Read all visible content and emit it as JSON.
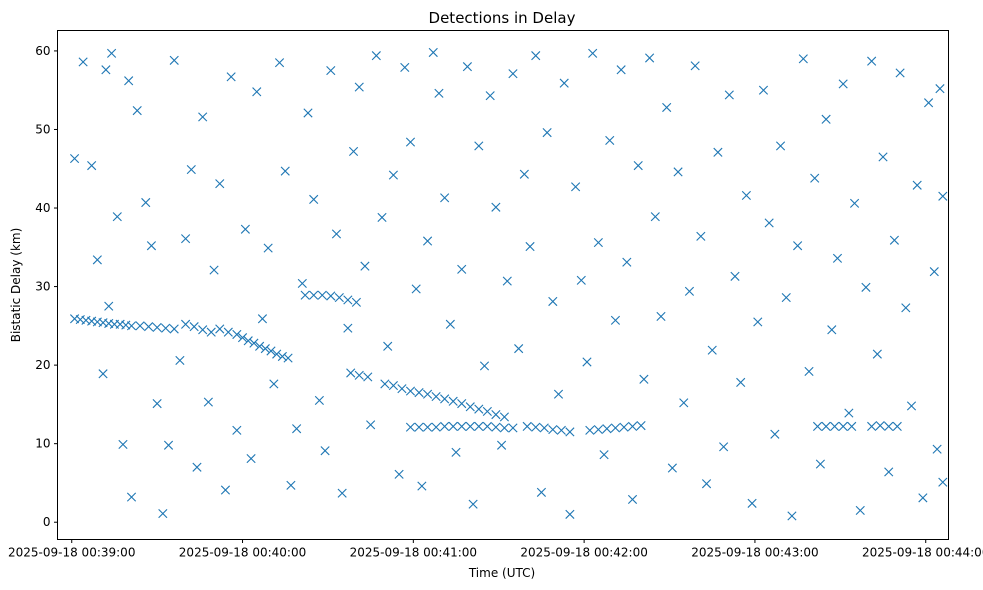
{
  "chart_data": {
    "type": "scatter",
    "title": "Detections in Delay",
    "xlabel": "Time (UTC)",
    "ylabel": "Bistatic Delay (km)",
    "x_unit": "time",
    "xlim": [
      "2025-09-18 00:38:55",
      "2025-09-18 00:44:08"
    ],
    "ylim": [
      -2.2,
      62.6
    ],
    "x_ticks": [
      "2025-09-18 00:39:00",
      "2025-09-18 00:40:00",
      "2025-09-18 00:41:00",
      "2025-09-18 00:42:00",
      "2025-09-18 00:43:00",
      "2025-09-18 00:44:00"
    ],
    "y_ticks": [
      "0",
      "10",
      "20",
      "30",
      "40",
      "50",
      "60"
    ],
    "marker": "x",
    "color": "#1f77b4",
    "grid": false,
    "legend": "none",
    "series": [
      {
        "values": [
          [
            "2025-09-18 00:39:01",
            25.9
          ],
          [
            "2025-09-18 00:39:03",
            25.8
          ],
          [
            "2025-09-18 00:39:05",
            25.7
          ],
          [
            "2025-09-18 00:39:07",
            25.6
          ],
          [
            "2025-09-18 00:39:09",
            25.5
          ],
          [
            "2025-09-18 00:39:11",
            25.4
          ],
          [
            "2025-09-18 00:39:13",
            25.3
          ],
          [
            "2025-09-18 00:39:15",
            25.2
          ],
          [
            "2025-09-18 00:39:17",
            25.2
          ],
          [
            "2025-09-18 00:39:19",
            25.1
          ],
          [
            "2025-09-18 00:39:21",
            25.0
          ],
          [
            "2025-09-18 00:39:24",
            25.0
          ],
          [
            "2025-09-18 00:39:27",
            24.9
          ],
          [
            "2025-09-18 00:39:30",
            24.8
          ],
          [
            "2025-09-18 00:39:33",
            24.7
          ],
          [
            "2025-09-18 00:39:36",
            24.6
          ],
          [
            "2025-09-18 00:39:40",
            25.2
          ],
          [
            "2025-09-18 00:39:43",
            24.9
          ],
          [
            "2025-09-18 00:39:46",
            24.5
          ],
          [
            "2025-09-18 00:39:49",
            24.2
          ],
          [
            "2025-09-18 00:39:52",
            24.6
          ],
          [
            "2025-09-18 00:39:55",
            24.2
          ],
          [
            "2025-09-18 00:39:58",
            23.9
          ],
          [
            "2025-09-18 00:40:00",
            23.5
          ],
          [
            "2025-09-18 00:40:02",
            23.1
          ],
          [
            "2025-09-18 00:40:04",
            22.8
          ],
          [
            "2025-09-18 00:40:06",
            22.4
          ],
          [
            "2025-09-18 00:40:08",
            22.1
          ],
          [
            "2025-09-18 00:40:10",
            21.8
          ],
          [
            "2025-09-18 00:40:12",
            21.4
          ],
          [
            "2025-09-18 00:40:14",
            21.1
          ],
          [
            "2025-09-18 00:40:16",
            20.9
          ],
          [
            "2025-09-18 00:40:22",
            28.9
          ],
          [
            "2025-09-18 00:40:25",
            28.9
          ],
          [
            "2025-09-18 00:40:28",
            28.9
          ],
          [
            "2025-09-18 00:40:31",
            28.8
          ],
          [
            "2025-09-18 00:40:34",
            28.6
          ],
          [
            "2025-09-18 00:40:37",
            28.3
          ],
          [
            "2025-09-18 00:40:40",
            28.0
          ],
          [
            "2025-09-18 00:40:38",
            19.0
          ],
          [
            "2025-09-18 00:40:41",
            18.7
          ],
          [
            "2025-09-18 00:40:44",
            18.5
          ],
          [
            "2025-09-18 00:40:50",
            17.6
          ],
          [
            "2025-09-18 00:40:53",
            17.4
          ],
          [
            "2025-09-18 00:40:56",
            17.0
          ],
          [
            "2025-09-18 00:40:59",
            16.7
          ],
          [
            "2025-09-18 00:41:02",
            16.5
          ],
          [
            "2025-09-18 00:41:05",
            16.3
          ],
          [
            "2025-09-18 00:41:08",
            16.0
          ],
          [
            "2025-09-18 00:41:11",
            15.7
          ],
          [
            "2025-09-18 00:41:14",
            15.4
          ],
          [
            "2025-09-18 00:41:17",
            15.1
          ],
          [
            "2025-09-18 00:41:20",
            14.7
          ],
          [
            "2025-09-18 00:41:23",
            14.4
          ],
          [
            "2025-09-18 00:41:26",
            14.1
          ],
          [
            "2025-09-18 00:41:29",
            13.7
          ],
          [
            "2025-09-18 00:41:32",
            13.4
          ],
          [
            "2025-09-18 00:40:59",
            12.1
          ],
          [
            "2025-09-18 00:41:02",
            12.1
          ],
          [
            "2025-09-18 00:41:05",
            12.1
          ],
          [
            "2025-09-18 00:41:08",
            12.1
          ],
          [
            "2025-09-18 00:41:11",
            12.2
          ],
          [
            "2025-09-18 00:41:14",
            12.2
          ],
          [
            "2025-09-18 00:41:17",
            12.2
          ],
          [
            "2025-09-18 00:41:20",
            12.2
          ],
          [
            "2025-09-18 00:41:23",
            12.2
          ],
          [
            "2025-09-18 00:41:26",
            12.2
          ],
          [
            "2025-09-18 00:41:29",
            12.1
          ],
          [
            "2025-09-18 00:41:32",
            12.0
          ],
          [
            "2025-09-18 00:41:35",
            12.0
          ],
          [
            "2025-09-18 00:41:40",
            12.2
          ],
          [
            "2025-09-18 00:41:43",
            12.1
          ],
          [
            "2025-09-18 00:41:46",
            12.0
          ],
          [
            "2025-09-18 00:41:49",
            11.8
          ],
          [
            "2025-09-18 00:41:52",
            11.7
          ],
          [
            "2025-09-18 00:41:55",
            11.5
          ],
          [
            "2025-09-18 00:42:02",
            11.7
          ],
          [
            "2025-09-18 00:42:05",
            11.8
          ],
          [
            "2025-09-18 00:42:08",
            11.9
          ],
          [
            "2025-09-18 00:42:11",
            12.0
          ],
          [
            "2025-09-18 00:42:14",
            12.1
          ],
          [
            "2025-09-18 00:42:17",
            12.2
          ],
          [
            "2025-09-18 00:42:20",
            12.3
          ],
          [
            "2025-09-18 00:43:22",
            12.2
          ],
          [
            "2025-09-18 00:43:25",
            12.2
          ],
          [
            "2025-09-18 00:43:28",
            12.2
          ],
          [
            "2025-09-18 00:43:31",
            12.2
          ],
          [
            "2025-09-18 00:43:34",
            12.2
          ],
          [
            "2025-09-18 00:43:41",
            12.2
          ],
          [
            "2025-09-18 00:43:44",
            12.3
          ],
          [
            "2025-09-18 00:43:47",
            12.2
          ],
          [
            "2025-09-18 00:43:50",
            12.2
          ],
          [
            "2025-09-18 00:39:01",
            46.3
          ],
          [
            "2025-09-18 00:39:04",
            58.6
          ],
          [
            "2025-09-18 00:39:07",
            45.4
          ],
          [
            "2025-09-18 00:39:09",
            33.4
          ],
          [
            "2025-09-18 00:39:11",
            18.9
          ],
          [
            "2025-09-18 00:39:12",
            57.6
          ],
          [
            "2025-09-18 00:39:13",
            27.5
          ],
          [
            "2025-09-18 00:39:14",
            59.7
          ],
          [
            "2025-09-18 00:39:16",
            38.9
          ],
          [
            "2025-09-18 00:39:18",
            9.9
          ],
          [
            "2025-09-18 00:39:20",
            56.2
          ],
          [
            "2025-09-18 00:39:21",
            3.2
          ],
          [
            "2025-09-18 00:39:23",
            52.4
          ],
          [
            "2025-09-18 00:39:26",
            40.7
          ],
          [
            "2025-09-18 00:39:28",
            35.2
          ],
          [
            "2025-09-18 00:39:30",
            15.1
          ],
          [
            "2025-09-18 00:39:32",
            1.1
          ],
          [
            "2025-09-18 00:39:34",
            9.8
          ],
          [
            "2025-09-18 00:39:36",
            58.8
          ],
          [
            "2025-09-18 00:39:38",
            20.6
          ],
          [
            "2025-09-18 00:39:40",
            36.1
          ],
          [
            "2025-09-18 00:39:42",
            44.9
          ],
          [
            "2025-09-18 00:39:44",
            7.0
          ],
          [
            "2025-09-18 00:39:46",
            51.6
          ],
          [
            "2025-09-18 00:39:48",
            15.3
          ],
          [
            "2025-09-18 00:39:50",
            32.1
          ],
          [
            "2025-09-18 00:39:52",
            43.1
          ],
          [
            "2025-09-18 00:39:54",
            4.1
          ],
          [
            "2025-09-18 00:39:56",
            56.7
          ],
          [
            "2025-09-18 00:39:58",
            11.7
          ],
          [
            "2025-09-18 00:40:01",
            37.3
          ],
          [
            "2025-09-18 00:40:03",
            8.1
          ],
          [
            "2025-09-18 00:40:05",
            54.8
          ],
          [
            "2025-09-18 00:40:07",
            25.9
          ],
          [
            "2025-09-18 00:40:09",
            34.9
          ],
          [
            "2025-09-18 00:40:11",
            17.6
          ],
          [
            "2025-09-18 00:40:13",
            58.5
          ],
          [
            "2025-09-18 00:40:15",
            44.7
          ],
          [
            "2025-09-18 00:40:17",
            4.7
          ],
          [
            "2025-09-18 00:40:19",
            11.9
          ],
          [
            "2025-09-18 00:40:21",
            30.4
          ],
          [
            "2025-09-18 00:40:23",
            52.1
          ],
          [
            "2025-09-18 00:40:25",
            41.1
          ],
          [
            "2025-09-18 00:40:27",
            15.5
          ],
          [
            "2025-09-18 00:40:29",
            9.1
          ],
          [
            "2025-09-18 00:40:31",
            57.5
          ],
          [
            "2025-09-18 00:40:33",
            36.7
          ],
          [
            "2025-09-18 00:40:35",
            3.7
          ],
          [
            "2025-09-18 00:40:37",
            24.7
          ],
          [
            "2025-09-18 00:40:39",
            47.2
          ],
          [
            "2025-09-18 00:40:41",
            55.4
          ],
          [
            "2025-09-18 00:40:43",
            32.6
          ],
          [
            "2025-09-18 00:40:45",
            12.4
          ],
          [
            "2025-09-18 00:40:47",
            59.4
          ],
          [
            "2025-09-18 00:40:49",
            38.8
          ],
          [
            "2025-09-18 00:40:51",
            22.4
          ],
          [
            "2025-09-18 00:40:53",
            44.2
          ],
          [
            "2025-09-18 00:40:55",
            6.1
          ],
          [
            "2025-09-18 00:40:57",
            57.9
          ],
          [
            "2025-09-18 00:40:59",
            48.4
          ],
          [
            "2025-09-18 00:41:01",
            29.7
          ],
          [
            "2025-09-18 00:41:03",
            4.6
          ],
          [
            "2025-09-18 00:41:05",
            35.8
          ],
          [
            "2025-09-18 00:41:07",
            59.8
          ],
          [
            "2025-09-18 00:41:09",
            54.6
          ],
          [
            "2025-09-18 00:41:11",
            41.3
          ],
          [
            "2025-09-18 00:41:13",
            25.2
          ],
          [
            "2025-09-18 00:41:15",
            8.9
          ],
          [
            "2025-09-18 00:41:17",
            32.2
          ],
          [
            "2025-09-18 00:41:19",
            58.0
          ],
          [
            "2025-09-18 00:41:21",
            2.3
          ],
          [
            "2025-09-18 00:41:23",
            47.9
          ],
          [
            "2025-09-18 00:41:25",
            19.9
          ],
          [
            "2025-09-18 00:41:27",
            54.3
          ],
          [
            "2025-09-18 00:41:29",
            40.1
          ],
          [
            "2025-09-18 00:41:31",
            9.8
          ],
          [
            "2025-09-18 00:41:33",
            30.7
          ],
          [
            "2025-09-18 00:41:35",
            57.1
          ],
          [
            "2025-09-18 00:41:37",
            22.1
          ],
          [
            "2025-09-18 00:41:39",
            44.3
          ],
          [
            "2025-09-18 00:41:41",
            35.1
          ],
          [
            "2025-09-18 00:41:43",
            59.4
          ],
          [
            "2025-09-18 00:41:45",
            3.8
          ],
          [
            "2025-09-18 00:41:47",
            49.6
          ],
          [
            "2025-09-18 00:41:49",
            28.1
          ],
          [
            "2025-09-18 00:41:51",
            16.3
          ],
          [
            "2025-09-18 00:41:53",
            55.9
          ],
          [
            "2025-09-18 00:41:55",
            1.0
          ],
          [
            "2025-09-18 00:41:57",
            42.7
          ],
          [
            "2025-09-18 00:41:59",
            30.8
          ],
          [
            "2025-09-18 00:42:01",
            20.4
          ],
          [
            "2025-09-18 00:42:03",
            59.7
          ],
          [
            "2025-09-18 00:42:05",
            35.6
          ],
          [
            "2025-09-18 00:42:07",
            8.6
          ],
          [
            "2025-09-18 00:42:09",
            48.6
          ],
          [
            "2025-09-18 00:42:11",
            25.7
          ],
          [
            "2025-09-18 00:42:13",
            57.6
          ],
          [
            "2025-09-18 00:42:15",
            33.1
          ],
          [
            "2025-09-18 00:42:17",
            2.9
          ],
          [
            "2025-09-18 00:42:19",
            45.4
          ],
          [
            "2025-09-18 00:42:21",
            18.2
          ],
          [
            "2025-09-18 00:42:23",
            59.1
          ],
          [
            "2025-09-18 00:42:25",
            38.9
          ],
          [
            "2025-09-18 00:42:27",
            26.2
          ],
          [
            "2025-09-18 00:42:29",
            52.8
          ],
          [
            "2025-09-18 00:42:31",
            6.9
          ],
          [
            "2025-09-18 00:42:33",
            44.6
          ],
          [
            "2025-09-18 00:42:35",
            15.2
          ],
          [
            "2025-09-18 00:42:37",
            29.4
          ],
          [
            "2025-09-18 00:42:39",
            58.1
          ],
          [
            "2025-09-18 00:42:41",
            36.4
          ],
          [
            "2025-09-18 00:42:43",
            4.9
          ],
          [
            "2025-09-18 00:42:45",
            21.9
          ],
          [
            "2025-09-18 00:42:47",
            47.1
          ],
          [
            "2025-09-18 00:42:49",
            9.6
          ],
          [
            "2025-09-18 00:42:51",
            54.4
          ],
          [
            "2025-09-18 00:42:53",
            31.3
          ],
          [
            "2025-09-18 00:42:55",
            17.8
          ],
          [
            "2025-09-18 00:42:57",
            41.6
          ],
          [
            "2025-09-18 00:42:59",
            2.4
          ],
          [
            "2025-09-18 00:43:01",
            25.5
          ],
          [
            "2025-09-18 00:43:03",
            55.0
          ],
          [
            "2025-09-18 00:43:05",
            38.1
          ],
          [
            "2025-09-18 00:43:07",
            11.2
          ],
          [
            "2025-09-18 00:43:09",
            47.9
          ],
          [
            "2025-09-18 00:43:11",
            28.6
          ],
          [
            "2025-09-18 00:43:13",
            0.8
          ],
          [
            "2025-09-18 00:43:15",
            35.2
          ],
          [
            "2025-09-18 00:43:17",
            59.0
          ],
          [
            "2025-09-18 00:43:19",
            19.2
          ],
          [
            "2025-09-18 00:43:21",
            43.8
          ],
          [
            "2025-09-18 00:43:23",
            7.4
          ],
          [
            "2025-09-18 00:43:25",
            51.3
          ],
          [
            "2025-09-18 00:43:27",
            24.5
          ],
          [
            "2025-09-18 00:43:29",
            33.6
          ],
          [
            "2025-09-18 00:43:31",
            55.8
          ],
          [
            "2025-09-18 00:43:33",
            13.9
          ],
          [
            "2025-09-18 00:43:35",
            40.6
          ],
          [
            "2025-09-18 00:43:37",
            1.5
          ],
          [
            "2025-09-18 00:43:39",
            29.9
          ],
          [
            "2025-09-18 00:43:41",
            58.7
          ],
          [
            "2025-09-18 00:43:43",
            21.4
          ],
          [
            "2025-09-18 00:43:45",
            46.5
          ],
          [
            "2025-09-18 00:43:47",
            6.4
          ],
          [
            "2025-09-18 00:43:49",
            35.9
          ],
          [
            "2025-09-18 00:43:51",
            57.2
          ],
          [
            "2025-09-18 00:43:53",
            27.3
          ],
          [
            "2025-09-18 00:43:55",
            14.8
          ],
          [
            "2025-09-18 00:43:57",
            42.9
          ],
          [
            "2025-09-18 00:43:59",
            3.1
          ],
          [
            "2025-09-18 00:44:01",
            53.4
          ],
          [
            "2025-09-18 00:44:03",
            31.9
          ],
          [
            "2025-09-18 00:44:04",
            9.3
          ],
          [
            "2025-09-18 00:44:05",
            55.2
          ],
          [
            "2025-09-18 00:44:06",
            5.1
          ],
          [
            "2025-09-18 00:44:06",
            41.5
          ]
        ]
      }
    ]
  }
}
